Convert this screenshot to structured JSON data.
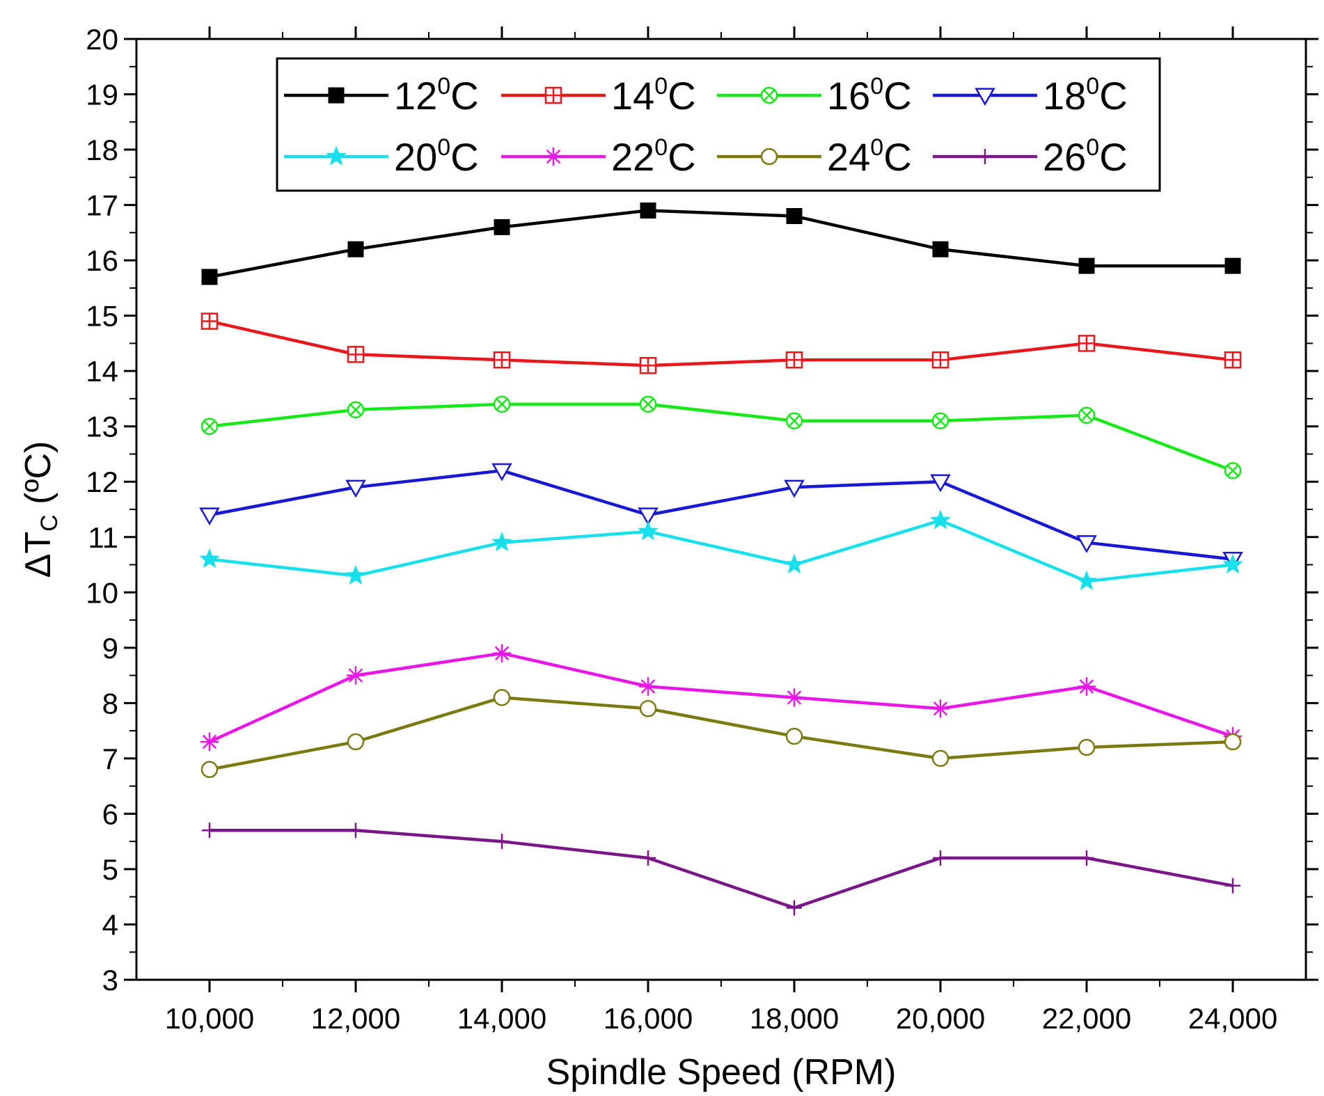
{
  "chart_data": {
    "type": "line",
    "title": "",
    "xlabel": "Spindle Speed (RPM)",
    "ylabel": {
      "prefix": "ΔT",
      "subscript": "C",
      "suffix": " (ºC)"
    },
    "x": [
      10000,
      12000,
      14000,
      16000,
      18000,
      20000,
      22000,
      24000
    ],
    "x_tick_labels": [
      "10,000",
      "12,000",
      "14,000",
      "16,000",
      "18,000",
      "20,000",
      "22,000",
      "24,000"
    ],
    "xlim": [
      9000,
      25000
    ],
    "ylim": [
      3,
      20
    ],
    "y_ticks": [
      "3",
      "4",
      "5",
      "6",
      "7",
      "8",
      "9",
      "10",
      "11",
      "12",
      "13",
      "14",
      "15",
      "16",
      "17",
      "18",
      "19",
      "20"
    ],
    "grid": false,
    "legend_position": "top",
    "series": [
      {
        "name": "12",
        "unit": "C",
        "sup": "0",
        "color": "#000000",
        "marker": "filled-square",
        "values": [
          15.7,
          16.2,
          16.6,
          16.9,
          16.8,
          16.2,
          15.9,
          15.9
        ]
      },
      {
        "name": "14",
        "unit": "C",
        "sup": "0",
        "color": "#e8171c",
        "marker": "square-plus",
        "values": [
          14.9,
          14.3,
          14.2,
          14.1,
          14.2,
          14.2,
          14.5,
          14.2
        ]
      },
      {
        "name": "16",
        "unit": "C",
        "sup": "0",
        "color": "#17e817",
        "marker": "circle-x",
        "values": [
          13.0,
          13.3,
          13.4,
          13.4,
          13.1,
          13.1,
          13.2,
          12.2
        ]
      },
      {
        "name": "18",
        "unit": "C",
        "sup": "0",
        "color": "#1717d4",
        "marker": "open-triangle-down",
        "values": [
          11.4,
          11.9,
          12.2,
          11.4,
          11.9,
          12.0,
          10.9,
          10.6
        ]
      },
      {
        "name": "20",
        "unit": "C",
        "sup": "0",
        "color": "#17e0ec",
        "marker": "star",
        "values": [
          10.6,
          10.3,
          10.9,
          11.1,
          10.5,
          11.3,
          10.2,
          10.5
        ]
      },
      {
        "name": "22",
        "unit": "C",
        "sup": "0",
        "color": "#e817e8",
        "marker": "asterisk",
        "values": [
          7.3,
          8.5,
          8.9,
          8.3,
          8.1,
          7.9,
          8.3,
          7.4
        ]
      },
      {
        "name": "24",
        "unit": "C",
        "sup": "0",
        "color": "#7a7a10",
        "marker": "open-circle",
        "values": [
          6.8,
          7.3,
          8.1,
          7.9,
          7.4,
          7.0,
          7.2,
          7.3
        ]
      },
      {
        "name": "26",
        "unit": "C",
        "sup": "0",
        "color": "#7a1787",
        "marker": "plus",
        "values": [
          5.7,
          5.7,
          5.5,
          5.2,
          4.3,
          5.2,
          5.2,
          4.7
        ]
      }
    ]
  }
}
